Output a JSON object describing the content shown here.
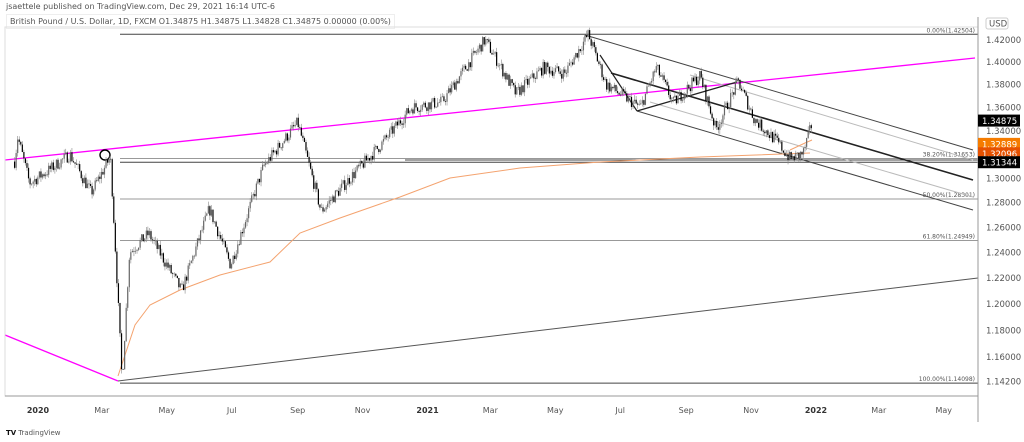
{
  "header": {
    "published": "jsaettele published on TradingView.com, Dec 29, 2021 16:14 UTC-6",
    "legend": "British Pound / U.S. Dollar, 1D, FXCM  O1.34875  H1.34875  L1.34828  C1.34875  0.00000 (0.00%)"
  },
  "footer": {
    "brand": "TradingView"
  },
  "chart_data": {
    "type": "candlestick",
    "symbol": "British Pound / U.S. Dollar",
    "interval": "1D",
    "currency": "USD",
    "y_scale": "log",
    "ylim": [
      1.13,
      1.43
    ],
    "y_ticks": [
      "1.42000",
      "1.40000",
      "1.38000",
      "1.36000",
      "1.34000",
      "1.30000",
      "1.28000",
      "1.26000",
      "1.24000",
      "1.22000",
      "1.20000",
      "1.18000",
      "1.16000",
      "1.14200"
    ],
    "x_ticks": [
      {
        "label": "2020",
        "date": "2020-01-01",
        "bold": true
      },
      {
        "label": "Mar",
        "date": "2020-03-01"
      },
      {
        "label": "May",
        "date": "2020-05-01"
      },
      {
        "label": "Jul",
        "date": "2020-07-01"
      },
      {
        "label": "Sep",
        "date": "2020-09-01"
      },
      {
        "label": "Nov",
        "date": "2020-11-01"
      },
      {
        "label": "2021",
        "date": "2021-01-01",
        "bold": true
      },
      {
        "label": "Mar",
        "date": "2021-03-01"
      },
      {
        "label": "May",
        "date": "2021-05-01"
      },
      {
        "label": "Jul",
        "date": "2021-07-01"
      },
      {
        "label": "Sep",
        "date": "2021-09-01"
      },
      {
        "label": "Nov",
        "date": "2021-11-01"
      },
      {
        "label": "2022",
        "date": "2022-01-01",
        "bold": true
      },
      {
        "label": "Mar",
        "date": "2022-03-01"
      },
      {
        "label": "May",
        "date": "2022-05-01"
      }
    ],
    "price_path": [
      [
        "2019-12-10",
        1.314
      ],
      [
        "2019-12-13",
        1.335
      ],
      [
        "2019-12-24",
        1.296
      ],
      [
        "2020-01-10",
        1.306
      ],
      [
        "2020-01-31",
        1.32
      ],
      [
        "2020-02-20",
        1.288
      ],
      [
        "2020-03-09",
        1.318
      ],
      [
        "2020-03-20",
        1.142
      ],
      [
        "2020-03-27",
        1.24
      ],
      [
        "2020-04-14",
        1.255
      ],
      [
        "2020-05-15",
        1.21
      ],
      [
        "2020-06-10",
        1.275
      ],
      [
        "2020-06-30",
        1.23
      ],
      [
        "2020-07-31",
        1.31
      ],
      [
        "2020-09-01",
        1.347
      ],
      [
        "2020-09-23",
        1.273
      ],
      [
        "2020-10-20",
        1.3
      ],
      [
        "2020-11-20",
        1.33
      ],
      [
        "2020-12-17",
        1.36
      ],
      [
        "2021-01-15",
        1.365
      ],
      [
        "2021-02-24",
        1.42
      ],
      [
        "2021-03-25",
        1.372
      ],
      [
        "2021-04-20",
        1.395
      ],
      [
        "2021-05-10",
        1.39
      ],
      [
        "2021-06-01",
        1.425
      ],
      [
        "2021-06-18",
        1.38
      ],
      [
        "2021-07-20",
        1.36
      ],
      [
        "2021-08-04",
        1.395
      ],
      [
        "2021-08-20",
        1.364
      ],
      [
        "2021-09-14",
        1.388
      ],
      [
        "2021-09-29",
        1.341
      ],
      [
        "2021-10-20",
        1.383
      ],
      [
        "2021-11-04",
        1.35
      ],
      [
        "2021-11-25",
        1.331
      ],
      [
        "2021-12-08",
        1.316
      ],
      [
        "2021-12-20",
        1.321
      ],
      [
        "2021-12-29",
        1.34875
      ]
    ],
    "fib_levels": [
      {
        "label": "0.00%(1.42504)",
        "price": 1.42504
      },
      {
        "label": "38.20%(1.31653)",
        "price": 1.31653
      },
      {
        "label": "50.00%(1.28301)",
        "price": 1.28301
      },
      {
        "label": "61.80%(1.24949)",
        "price": 1.24949
      },
      {
        "label": "100.00%(1.14098)",
        "price": 1.14098
      }
    ],
    "price_labels": [
      {
        "label": "1.34875",
        "price": 1.34875,
        "color": "#000000"
      },
      {
        "label": "1.32889",
        "price": 1.32889,
        "color": "#f57c00"
      },
      {
        "label": "1.32096",
        "price": 1.32096,
        "color": "#e65100"
      },
      {
        "label": "1.31344",
        "price": 1.31344,
        "color": "#000000"
      }
    ],
    "colors": {
      "trendline": "#ff00ff",
      "moving_average": "#f4a36f",
      "candles": "#000000"
    }
  }
}
